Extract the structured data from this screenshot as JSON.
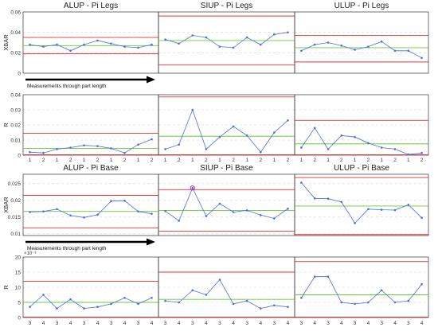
{
  "chart_data": {
    "type": "line",
    "colors": {
      "data": "#4a6fe3",
      "center": "#66cc33",
      "limit": "#ee3030",
      "grid": "#d6d6d6",
      "frame": "#333333",
      "arrow": "#000000",
      "highlight": "#cc2288"
    },
    "measurement_label": "Measurements through part length",
    "sections": [
      {
        "xbar_ylabel": "XBAR",
        "r_ylabel": "R",
        "xbar_yticks": [
          "0",
          "0.02",
          "0.04",
          "0.06"
        ],
        "xbar_ylim": [
          0,
          0.06
        ],
        "r_yticks": [
          "0",
          "0.01",
          "0.02",
          "0.03",
          "0.04"
        ],
        "r_ylim": [
          0,
          0.04
        ],
        "r_exponent": "",
        "panels": [
          {
            "title": "ALUP - Pi Legs",
            "x_labels": [
              "1",
              "2",
              "1",
              "2",
              "1",
              "2",
              "1",
              "2",
              "1",
              "2"
            ],
            "xbar": {
              "values": [
                0.028,
                0.026,
                0.028,
                0.022,
                0.028,
                0.032,
                0.029,
                0.026,
                0.025,
                0.028
              ],
              "ucl": 0.035,
              "cl": 0.027,
              "lcl": 0.019
            },
            "r": {
              "values": [
                0.002,
                0.0015,
                0.004,
                0.005,
                0.0065,
                0.006,
                0.0045,
                0.0015,
                0.007,
                0.0105
              ],
              "ucl": 0.0145,
              "cl": 0.0045,
              "lcl": 0.0
            }
          },
          {
            "title": "SIUP - Pi Legs",
            "x_labels": [
              "1",
              "2",
              "1",
              "2",
              "1",
              "2",
              "1",
              "2",
              "1",
              "2"
            ],
            "xbar": {
              "values": [
                0.033,
                0.029,
                0.037,
                0.035,
                0.026,
                0.025,
                0.035,
                0.028,
                0.038,
                0.04
              ],
              "ucl": 0.056,
              "cl": 0.032,
              "lcl": 0.008
            },
            "r": {
              "values": [
                0.004,
                0.007,
                0.03,
                0.004,
                0.012,
                0.019,
                0.013,
                0.002,
                0.015,
                0.023
              ],
              "ucl": 0.0385,
              "cl": 0.0125,
              "lcl": 0.0
            }
          },
          {
            "title": "ULUP - Pi Legs",
            "x_labels": [
              "1",
              "2",
              "1",
              "2",
              "1",
              "2",
              "1",
              "2",
              "1",
              "2"
            ],
            "xbar": {
              "values": [
                0.022,
                0.028,
                0.03,
                0.027,
                0.023,
                0.026,
                0.031,
                0.022,
                0.022,
                0.015
              ],
              "ucl": 0.037,
              "cl": 0.025,
              "lcl": 0.011
            },
            "r": {
              "values": [
                0.005,
                0.018,
                0.004,
                0.013,
                0.012,
                0.008,
                0.005,
                0.004,
                0.0005,
                0.0015
              ],
              "ucl": 0.023,
              "cl": 0.0075,
              "lcl": 0.0
            }
          }
        ]
      },
      {
        "xbar_ylabel": "XBAR",
        "r_ylabel": "R",
        "xbar_yticks": [
          "0.01",
          "0.015",
          "0.02",
          "0.025"
        ],
        "xbar_ylim": [
          0.0095,
          0.0278
        ],
        "r_yticks": [
          "0",
          "5",
          "10",
          "15",
          "20"
        ],
        "r_ylim": [
          0,
          20
        ],
        "r_exponent": "×10⁻³",
        "panels": [
          {
            "title": "ALUP - Pi Base",
            "x_labels": [
              "3",
              "4",
              "3",
              "4",
              "3",
              "4",
              "3",
              "4",
              "3",
              "4"
            ],
            "xbar": {
              "values": [
                0.0165,
                0.0167,
                0.0174,
                0.0155,
                0.0149,
                0.0157,
                0.0198,
                0.0199,
                0.0167,
                0.016
              ],
              "ucl": 0.0215,
              "cl": 0.0167,
              "lcl": 0.0118
            },
            "r": {
              "values": [
                3.5,
                7.5,
                3.0,
                6.0,
                3.0,
                3.5,
                4.5,
                6.5,
                4.5,
                6.5
              ],
              "ucl": 12.0,
              "cl": 5.0,
              "lcl": 0.0
            },
            "highlight": -1
          },
          {
            "title": "SIUP - Pi Base",
            "x_labels": [
              "3",
              "4",
              "3",
              "4",
              "3",
              "4",
              "3",
              "4",
              "3",
              "4"
            ],
            "xbar": {
              "values": [
                0.0168,
                0.0139,
                0.0237,
                0.0153,
                0.019,
                0.0165,
                0.017,
                0.0156,
                0.0146,
                0.0175
              ],
              "ucl": 0.0232,
              "cl": 0.017,
              "lcl": 0.0108
            },
            "r": {
              "values": [
                5.5,
                5.0,
                9.0,
                7.5,
                12.5,
                4.5,
                5.5,
                3.0,
                4.0,
                3.5
              ],
              "ucl": 15.0,
              "cl": 6.0,
              "lcl": 0.0
            },
            "highlight": 2
          },
          {
            "title": "ULUP - Pi Base",
            "x_labels": [
              "3",
              "4",
              "3",
              "4",
              "3",
              "4",
              "3",
              "4",
              "3",
              "4"
            ],
            "xbar": {
              "values": [
                0.0253,
                0.0206,
                0.0205,
                0.0195,
                0.0132,
                0.0174,
                0.0172,
                0.0171,
                0.0187,
                0.0148
              ],
              "ucl": 0.0268,
              "cl": 0.0183,
              "lcl": 0.0098
            },
            "r": {
              "values": [
                6.5,
                13.5,
                13.5,
                5.0,
                4.5,
                5.0,
                9.0,
                5.0,
                5.5,
                11.0
              ],
              "ucl": 18.5,
              "cl": 7.5,
              "lcl": 0.0
            },
            "highlight": -1
          }
        ]
      }
    ]
  }
}
